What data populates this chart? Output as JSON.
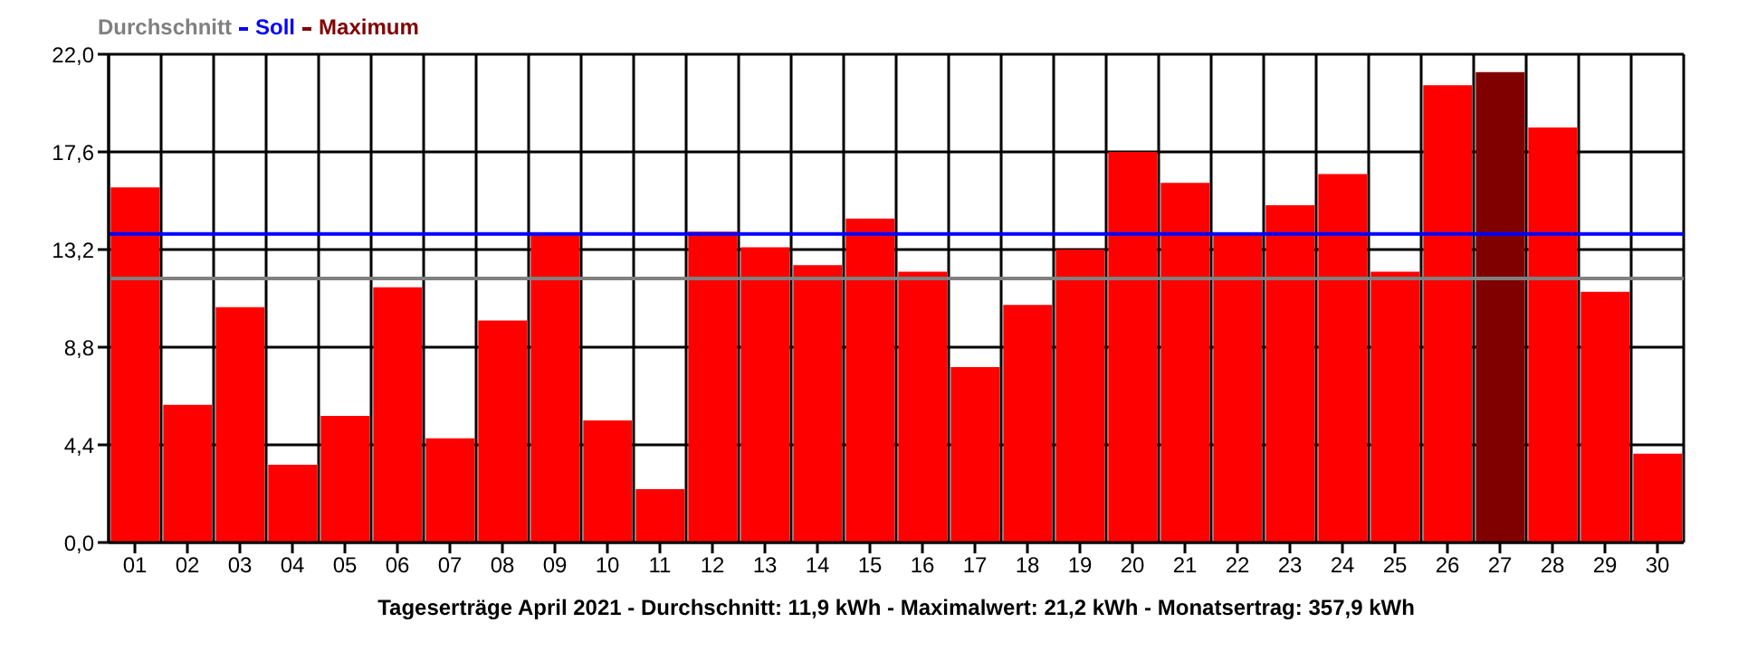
{
  "chart_data": {
    "type": "bar",
    "xlabel": "Tageserträge April 2021 - Durchschnitt: 11,9 kWh - Maximalwert: 21,2 kWh - Monatsertrag: 357,9 kWh",
    "categories": [
      "01",
      "02",
      "03",
      "04",
      "05",
      "06",
      "07",
      "08",
      "09",
      "10",
      "11",
      "12",
      "13",
      "14",
      "15",
      "16",
      "17",
      "18",
      "19",
      "20",
      "21",
      "22",
      "23",
      "24",
      "25",
      "26",
      "27",
      "28",
      "29",
      "30"
    ],
    "stacked": true,
    "series": [
      {
        "color": "#ff0000",
        "values": [
          16.0,
          6.2,
          10.6,
          3.5,
          5.7,
          11.5,
          4.7,
          10.0,
          13.9,
          5.5,
          2.4,
          14.0,
          13.3,
          12.5,
          14.6,
          12.2,
          7.9,
          10.7,
          13.2,
          17.6,
          16.2,
          13.9,
          15.2,
          16.6,
          12.2,
          20.6,
          null,
          18.7,
          11.3,
          4.0
        ]
      },
      {
        "name": "Maximum",
        "color": "#800000",
        "values": [
          null,
          null,
          null,
          null,
          null,
          null,
          null,
          null,
          null,
          null,
          null,
          null,
          null,
          null,
          null,
          null,
          null,
          null,
          null,
          null,
          null,
          null,
          null,
          null,
          null,
          null,
          21.2,
          null,
          null,
          null
        ]
      }
    ],
    "ylim": [
      0,
      22
    ],
    "yticks": [
      {
        "value": 0,
        "label": "0,0"
      },
      {
        "value": 4.4,
        "label": "4,4"
      },
      {
        "value": 8.8,
        "label": "8,8"
      },
      {
        "value": 13.2,
        "label": "13,2"
      },
      {
        "value": 17.6,
        "label": "17,6"
      },
      {
        "value": 22,
        "label": "22,0"
      }
    ],
    "ref_lines": [
      {
        "axis": "y",
        "value": 11.9,
        "label": "Durchschnitt",
        "color": "#808080"
      },
      {
        "axis": "y",
        "value": 13.9,
        "label": "Soll",
        "color": "#0000ff"
      }
    ],
    "grid": true,
    "legend": "top left"
  }
}
